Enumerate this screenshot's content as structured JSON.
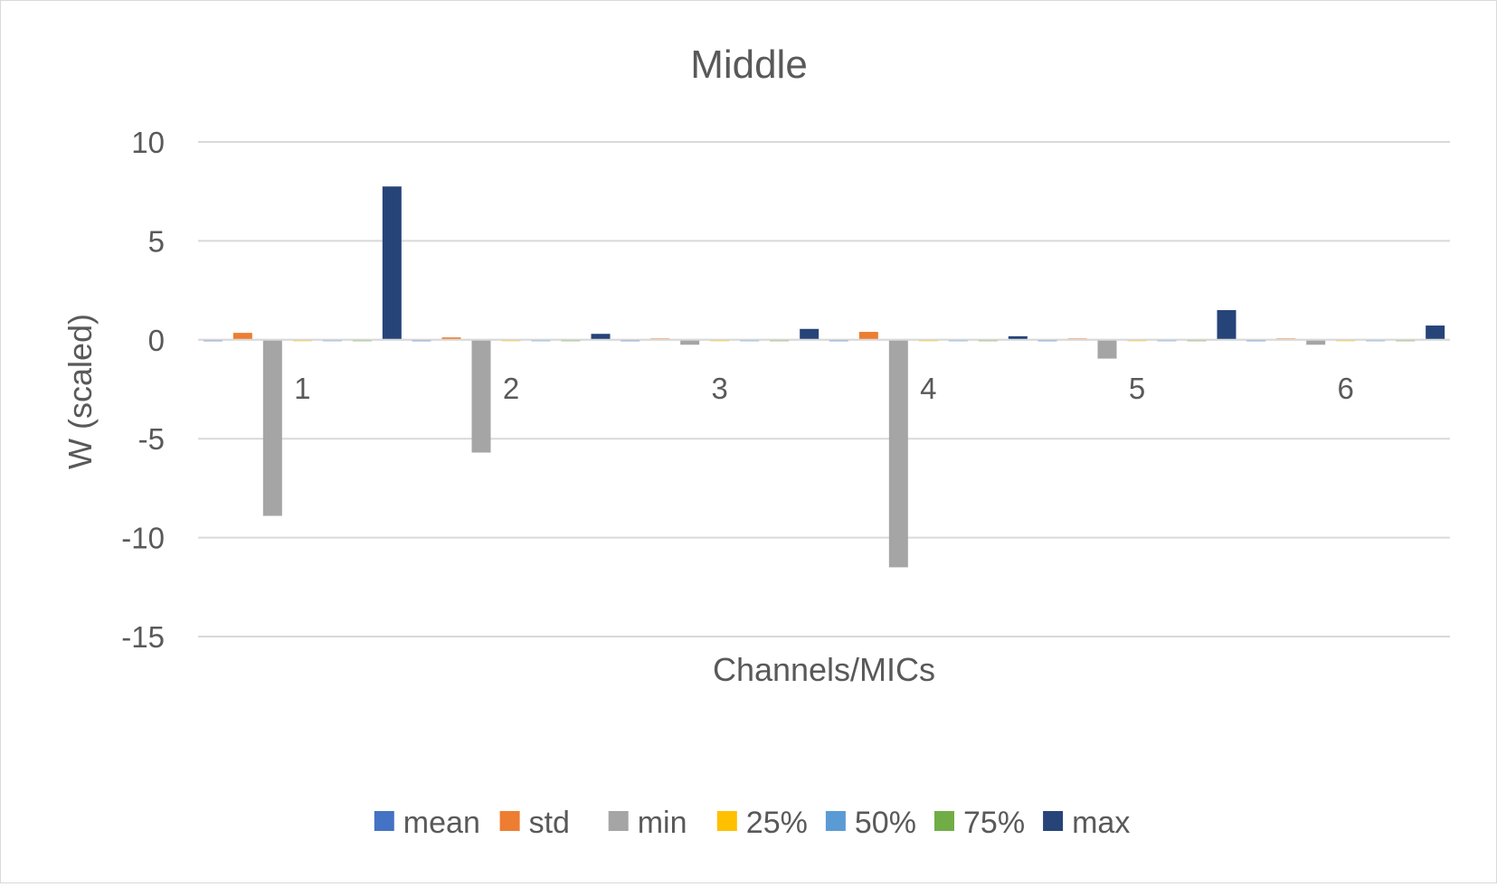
{
  "chart_data": {
    "type": "bar",
    "title": "Middle",
    "xlabel": "Channels/MICs",
    "ylabel": "W (scaled)",
    "ylim": [
      -15,
      10
    ],
    "yticks": [
      10,
      5,
      0,
      -5,
      -10,
      -15
    ],
    "grid": true,
    "legend_position": "bottom",
    "categories": [
      "1",
      "2",
      "3",
      "4",
      "5",
      "6"
    ],
    "series": [
      {
        "name": "mean",
        "color": "#4472C4",
        "values": [
          -0.05,
          -0.05,
          -0.03,
          -0.05,
          -0.03,
          -0.03
        ]
      },
      {
        "name": "std",
        "color": "#ED7D31",
        "values": [
          0.35,
          0.12,
          0.02,
          0.4,
          0.03,
          0.03
        ]
      },
      {
        "name": "min",
        "color": "#A5A5A5",
        "values": [
          -8.9,
          -5.7,
          -0.25,
          -11.5,
          -0.95,
          -0.25
        ]
      },
      {
        "name": "25%",
        "color": "#FFC000",
        "values": [
          -0.05,
          -0.04,
          -0.02,
          -0.05,
          -0.03,
          -0.02
        ]
      },
      {
        "name": "50%",
        "color": "#5B9BD5",
        "values": [
          -0.04,
          -0.03,
          -0.02,
          -0.04,
          -0.03,
          -0.02
        ]
      },
      {
        "name": "75%",
        "color": "#70AD47",
        "values": [
          -0.03,
          -0.02,
          -0.01,
          -0.03,
          -0.02,
          -0.01
        ]
      },
      {
        "name": "max",
        "color": "#264478",
        "values": [
          7.75,
          0.3,
          0.55,
          0.18,
          1.5,
          0.72
        ]
      }
    ]
  }
}
